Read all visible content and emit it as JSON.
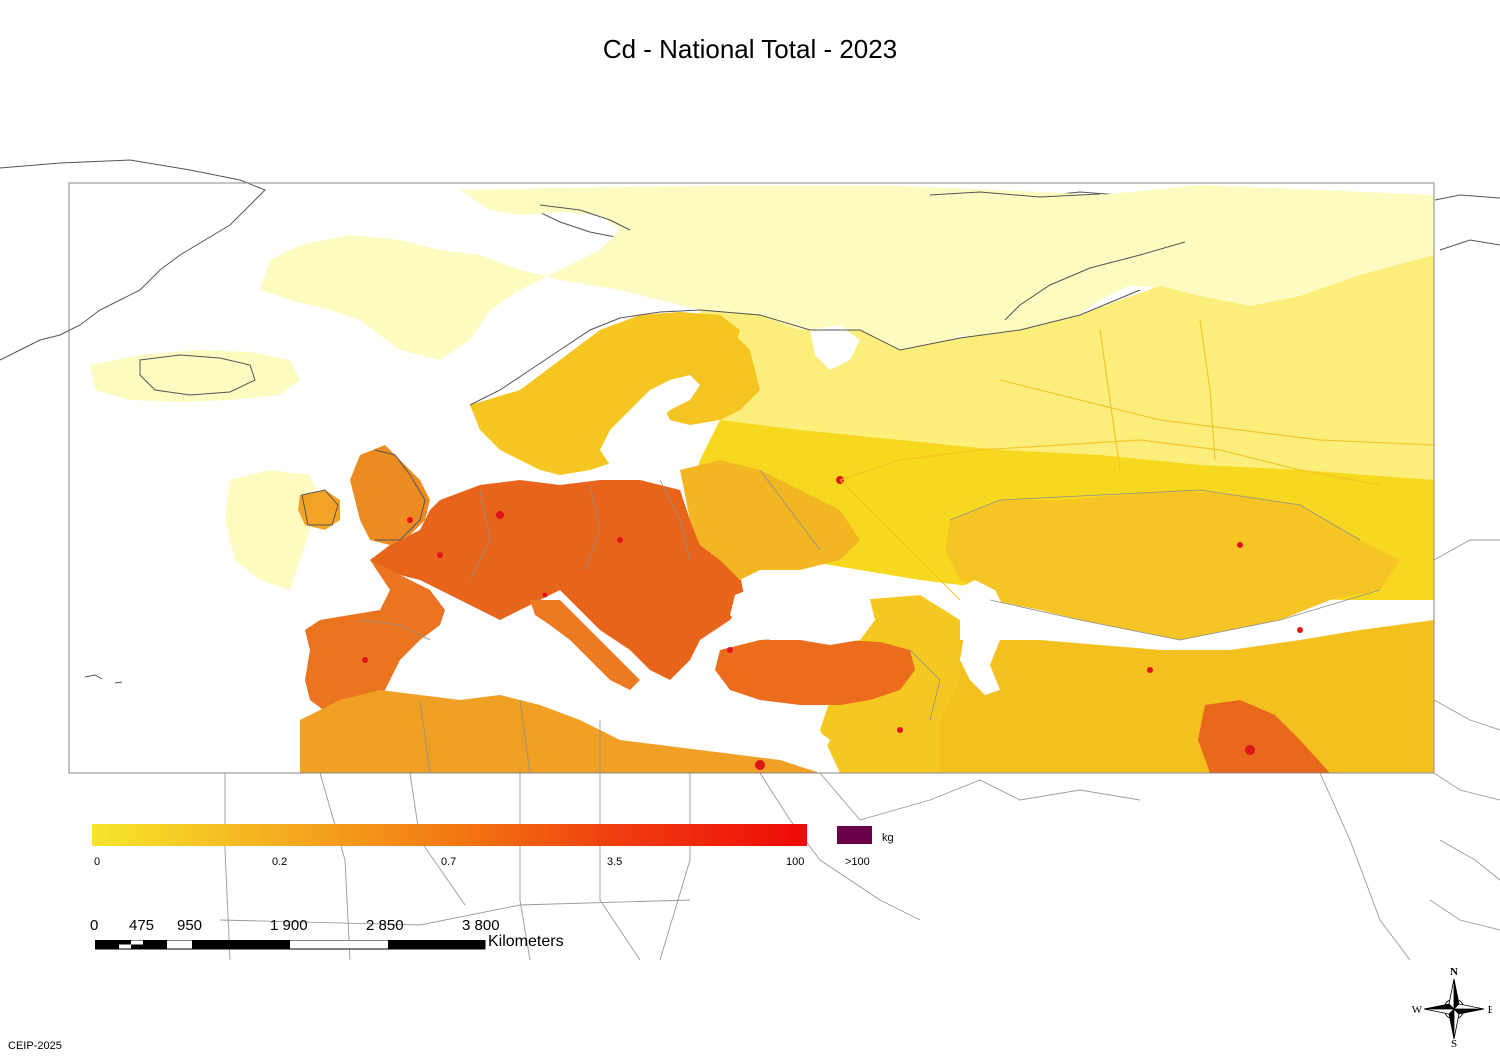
{
  "title": "Cd - National Total - 2023",
  "legend": {
    "gradient_stops": [
      "#f5e62a",
      "#f5b020",
      "#f27a12",
      "#f03a10",
      "#ee0a08"
    ],
    "tick_labels": [
      "0",
      "0.2",
      "0.7",
      "3.5",
      "100"
    ],
    "overflow_label": ">100",
    "overflow_color": "#6a0048",
    "unit": "kg"
  },
  "scale_bar": {
    "labels": [
      "0",
      "475",
      "950",
      "1 900",
      "2 850",
      "3 800"
    ],
    "unit": "Kilometers"
  },
  "compass": {
    "n": "N",
    "s": "S",
    "e": "E",
    "w": "W"
  },
  "credit": "CEIP-2025",
  "colors": {
    "pale": "#fdfbc0",
    "light": "#fbee7a",
    "yellow": "#f6d91e",
    "orange": "#ef8f1f",
    "red_orange": "#e5541b",
    "hotspot": "#e0141c",
    "coast": "#555555",
    "border": "#9a9a9a",
    "frame": "#8a8a8a"
  }
}
